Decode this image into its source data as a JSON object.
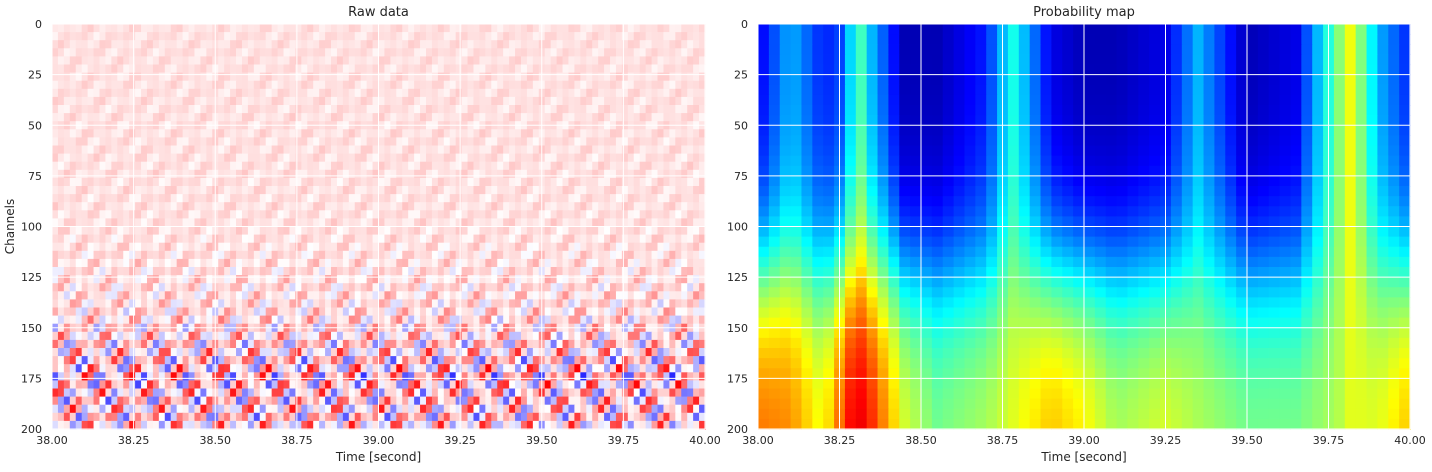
{
  "chart_data": [
    {
      "type": "heatmap",
      "title": "Raw data",
      "xlabel": "Time [second]",
      "ylabel": "Channels",
      "xlim": [
        38.0,
        40.0
      ],
      "ylim": [
        200,
        0
      ],
      "xticks": [
        38.0,
        38.25,
        38.5,
        38.75,
        39.0,
        39.25,
        39.5,
        39.75,
        40.0
      ],
      "xticklabels": [
        "38.00",
        "38.25",
        "38.50",
        "38.75",
        "39.00",
        "39.25",
        "39.50",
        "39.75",
        "40.00"
      ],
      "yticks": [
        0,
        25,
        50,
        75,
        100,
        125,
        150,
        175,
        200
      ],
      "yticklabels": [
        "0",
        "25",
        "50",
        "75",
        "100",
        "125",
        "150",
        "175",
        "200"
      ],
      "colormap": "bwr",
      "grid": true,
      "row_profile": {
        "channels": [
          0,
          100,
          140,
          160,
          175,
          180,
          200
        ],
        "amplitude": [
          0.08,
          0.12,
          0.35,
          0.7,
          1.0,
          0.85,
          0.8
        ]
      }
    },
    {
      "type": "heatmap",
      "title": "Probability map",
      "xlabel": "Time [second]",
      "ylabel": "",
      "xlim": [
        38.0,
        40.0
      ],
      "ylim": [
        200,
        0
      ],
      "xticks": [
        38.0,
        38.25,
        38.5,
        38.75,
        39.0,
        39.25,
        39.5,
        39.75,
        40.0
      ],
      "xticklabels": [
        "38.00",
        "38.25",
        "38.50",
        "38.75",
        "39.00",
        "39.25",
        "39.50",
        "39.75",
        "40.00"
      ],
      "yticks": [
        0,
        25,
        50,
        75,
        100,
        125,
        150,
        175,
        200
      ],
      "yticklabels": [
        "0",
        "25",
        "50",
        "75",
        "100",
        "125",
        "150",
        "175",
        "200"
      ],
      "colormap": "jet",
      "grid": true,
      "time_profile": {
        "t": [
          38.0,
          38.1,
          38.2,
          38.27,
          38.3,
          38.35,
          38.45,
          38.55,
          38.7,
          38.78,
          38.9,
          39.0,
          39.1,
          39.25,
          39.35,
          39.5,
          39.65,
          39.78,
          39.82,
          39.9,
          40.0
        ],
        "top": [
          0.1,
          0.3,
          0.15,
          0.2,
          0.5,
          0.3,
          0.05,
          0.05,
          0.15,
          0.4,
          0.1,
          0.05,
          0.05,
          0.1,
          0.3,
          0.05,
          0.1,
          0.5,
          0.62,
          0.3,
          0.15
        ],
        "bottom": [
          0.78,
          0.75,
          0.62,
          0.85,
          0.93,
          0.85,
          0.6,
          0.5,
          0.55,
          0.6,
          0.7,
          0.65,
          0.55,
          0.6,
          0.55,
          0.5,
          0.5,
          0.55,
          0.6,
          0.6,
          0.7
        ]
      }
    }
  ]
}
